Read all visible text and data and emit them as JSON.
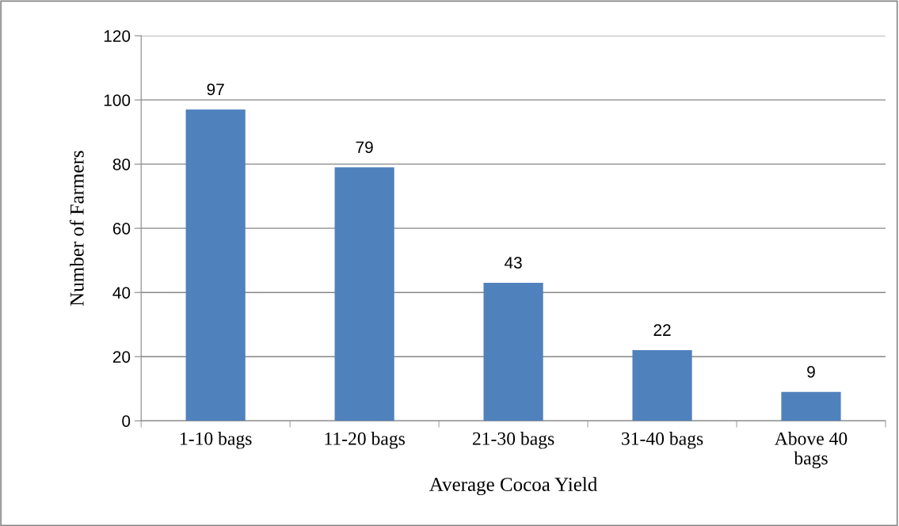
{
  "chart_data": {
    "type": "bar",
    "xlabel": "Average Cocoa Yield",
    "ylabel": "Number of Farmers",
    "categories": [
      "1-10 bags",
      "11-20 bags",
      "21-30 bags",
      "31-40 bags",
      "Above 40\nbags"
    ],
    "values": [
      97,
      79,
      43,
      22,
      9
    ],
    "color": "#4f81bd",
    "ylim": [
      0,
      120
    ],
    "yticks": [
      0,
      20,
      40,
      60,
      80,
      100,
      120
    ],
    "grid": "y",
    "data_labels": true
  }
}
